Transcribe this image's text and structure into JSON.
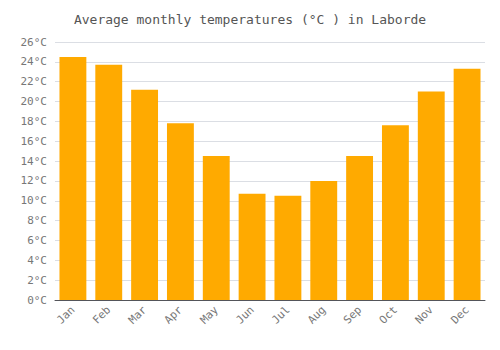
{
  "chart_data": {
    "type": "bar",
    "title": "Average monthly temperatures (°C ) in Laborde",
    "categories": [
      "Jan",
      "Feb",
      "Mar",
      "Apr",
      "May",
      "Jun",
      "Jul",
      "Aug",
      "Sep",
      "Oct",
      "Nov",
      "Dec"
    ],
    "values": [
      24.5,
      23.7,
      21.2,
      17.8,
      14.5,
      10.7,
      10.5,
      12.0,
      14.5,
      17.6,
      21.0,
      23.3
    ],
    "color": "#FFAA00",
    "ylim": [
      0,
      26
    ],
    "yticks": [
      {
        "value": 0,
        "label": "0°C"
      },
      {
        "value": 2,
        "label": "2°C"
      },
      {
        "value": 4,
        "label": "4°C"
      },
      {
        "value": 6,
        "label": "6°C"
      },
      {
        "value": 8,
        "label": "8°C"
      },
      {
        "value": 10,
        "label": "10°C"
      },
      {
        "value": 12,
        "label": "12°C"
      },
      {
        "value": 14,
        "label": "14°C"
      },
      {
        "value": 16,
        "label": "16°C"
      },
      {
        "value": 18,
        "label": "18°C"
      },
      {
        "value": 20,
        "label": "20°C"
      },
      {
        "value": 22,
        "label": "22°C"
      },
      {
        "value": 24,
        "label": "24°C"
      },
      {
        "value": 26,
        "label": "26°C"
      }
    ],
    "grid": true
  }
}
